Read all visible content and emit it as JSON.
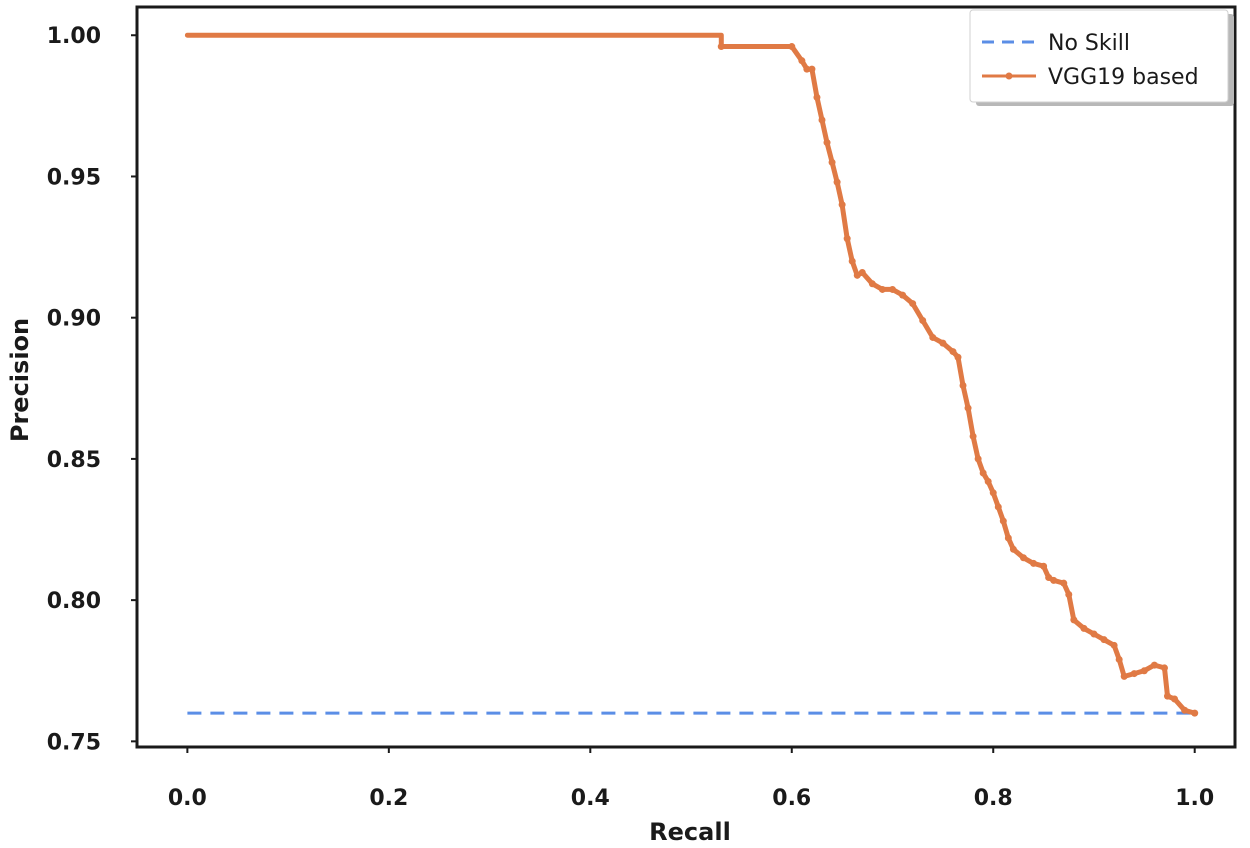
{
  "chart_data": {
    "type": "line",
    "title": "",
    "xlabel": "Recall",
    "ylabel": "Precision",
    "xlim": [
      -0.05,
      1.04
    ],
    "ylim": [
      0.748,
      1.01
    ],
    "xticks": [
      0.0,
      0.2,
      0.4,
      0.6,
      0.8,
      1.0
    ],
    "xtick_labels": [
      "0.0",
      "0.2",
      "0.4",
      "0.6",
      "0.8",
      "1.0"
    ],
    "yticks": [
      0.75,
      0.8,
      0.85,
      0.9,
      0.95,
      1.0
    ],
    "ytick_labels": [
      "0.75",
      "0.80",
      "0.85",
      "0.90",
      "0.95",
      "1.00"
    ],
    "grid": false,
    "legend_position": "top-right",
    "series": [
      {
        "name": "No Skill",
        "style": "dashed",
        "color": "#5b8ee6",
        "x": [
          0.0,
          1.0
        ],
        "y": [
          0.76,
          0.76
        ]
      },
      {
        "name": "VGG19 based",
        "style": "solid-marker",
        "color": "#e07a45",
        "x": [
          0.0,
          0.53,
          0.53,
          0.6,
          0.61,
          0.615,
          0.62,
          0.625,
          0.63,
          0.635,
          0.64,
          0.645,
          0.65,
          0.655,
          0.66,
          0.665,
          0.67,
          0.68,
          0.69,
          0.7,
          0.71,
          0.72,
          0.73,
          0.74,
          0.75,
          0.76,
          0.765,
          0.77,
          0.775,
          0.78,
          0.785,
          0.79,
          0.795,
          0.8,
          0.805,
          0.81,
          0.815,
          0.82,
          0.83,
          0.84,
          0.85,
          0.855,
          0.86,
          0.87,
          0.875,
          0.88,
          0.89,
          0.9,
          0.91,
          0.92,
          0.925,
          0.93,
          0.94,
          0.95,
          0.96,
          0.97,
          0.973,
          0.98,
          0.99,
          1.0
        ],
        "y": [
          1.0,
          1.0,
          0.996,
          0.996,
          0.991,
          0.988,
          0.988,
          0.978,
          0.97,
          0.962,
          0.955,
          0.948,
          0.94,
          0.928,
          0.92,
          0.915,
          0.916,
          0.912,
          0.91,
          0.91,
          0.908,
          0.905,
          0.899,
          0.893,
          0.891,
          0.888,
          0.886,
          0.876,
          0.868,
          0.858,
          0.85,
          0.845,
          0.842,
          0.838,
          0.833,
          0.828,
          0.822,
          0.818,
          0.815,
          0.813,
          0.812,
          0.808,
          0.807,
          0.806,
          0.802,
          0.793,
          0.79,
          0.788,
          0.786,
          0.784,
          0.779,
          0.773,
          0.774,
          0.775,
          0.777,
          0.776,
          0.766,
          0.765,
          0.761,
          0.76
        ]
      }
    ]
  }
}
